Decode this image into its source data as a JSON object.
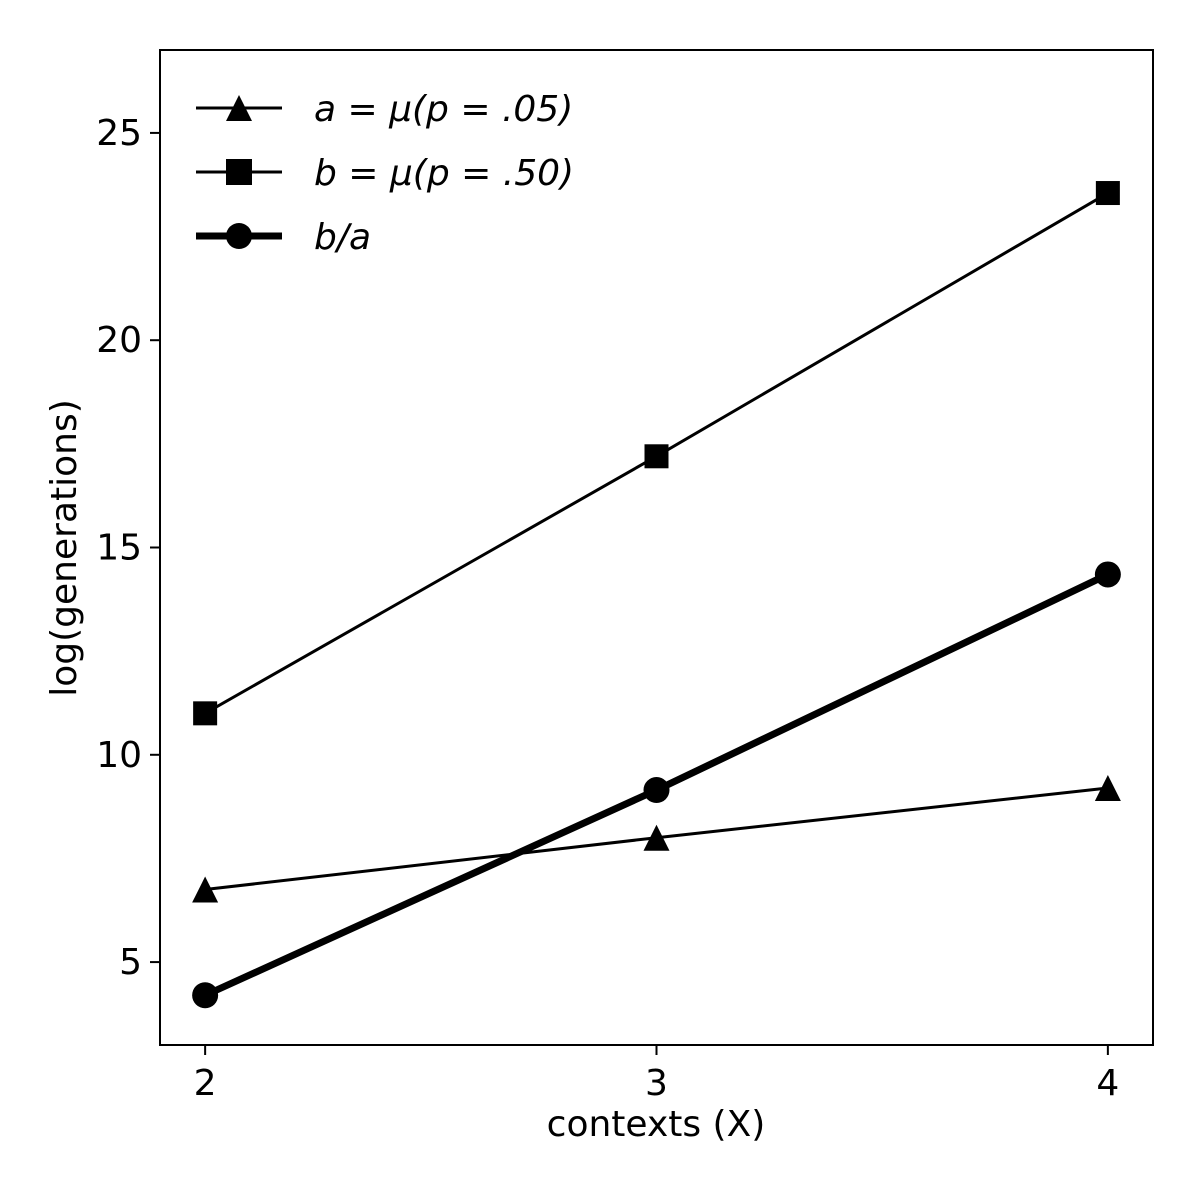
{
  "chart_data": {
    "type": "line",
    "xlabel": "contexts (X)",
    "ylabel": "log(generations)",
    "x": [
      2,
      3,
      4
    ],
    "xticks": [
      "2",
      "3",
      "4"
    ],
    "xlim": [
      1.9,
      4.1
    ],
    "yticks": [
      "5",
      "10",
      "15",
      "20",
      "25"
    ],
    "ylim": [
      3.0,
      27.0
    ],
    "grid": false,
    "legend": "top-left",
    "series": [
      {
        "name": "a = μ(p = .05)",
        "marker": "triangle",
        "line_width": "thin",
        "values": [
          6.75,
          8.0,
          9.2
        ]
      },
      {
        "name": "b = μ(p = .50)",
        "marker": "square",
        "line_width": "thin",
        "values": [
          11.0,
          17.2,
          23.55
        ]
      },
      {
        "name": "b/a",
        "marker": "circle",
        "line_width": "thick",
        "values": [
          4.2,
          9.15,
          14.35
        ]
      }
    ],
    "colors": {
      "line": "#000000",
      "background": "#ffffff"
    }
  }
}
